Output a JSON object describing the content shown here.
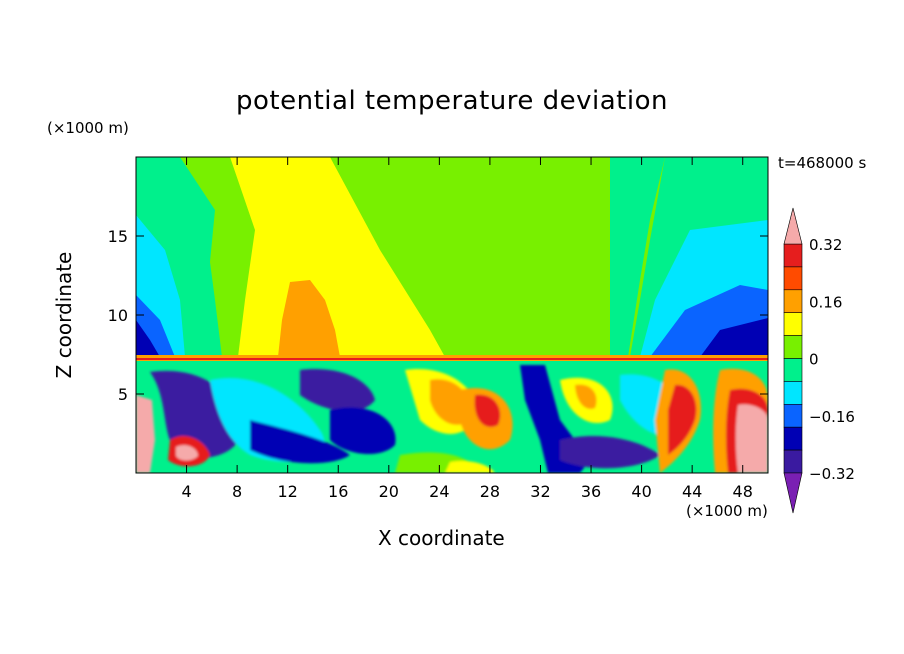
{
  "chart_data": {
    "type": "heatmap",
    "title": "potential temperature deviation",
    "xlabel": "X coordinate",
    "ylabel": "Z coordinate",
    "x_unit": "(×1000 m)",
    "y_unit": "(×1000 m)",
    "time_label": "t=468000 s",
    "xlim": [
      0,
      50
    ],
    "ylim": [
      0,
      20
    ],
    "x_ticks": [
      4,
      8,
      12,
      16,
      20,
      24,
      28,
      32,
      36,
      40,
      44,
      48
    ],
    "y_ticks": [
      5,
      10,
      15
    ],
    "colorbar": {
      "levels": [
        -0.4,
        -0.32,
        -0.24,
        -0.16,
        -0.08,
        0,
        0.08,
        0.16,
        0.24,
        0.32,
        0.4
      ],
      "tick_labels": [
        "0.32",
        "0.16",
        "0",
        "−0.16",
        "−0.32"
      ],
      "tick_values": [
        0.32,
        0.16,
        0,
        -0.16,
        -0.32
      ],
      "colors": [
        "#7a1fb3",
        "#3a1aa0",
        "#0000b4",
        "#0a64ff",
        "#00e6ff",
        "#00f08c",
        "#78f000",
        "#ffff00",
        "#ffa000",
        "#ff4b00",
        "#e61e1e",
        "#f5aaaa"
      ],
      "extend": "both"
    },
    "grid": false
  }
}
